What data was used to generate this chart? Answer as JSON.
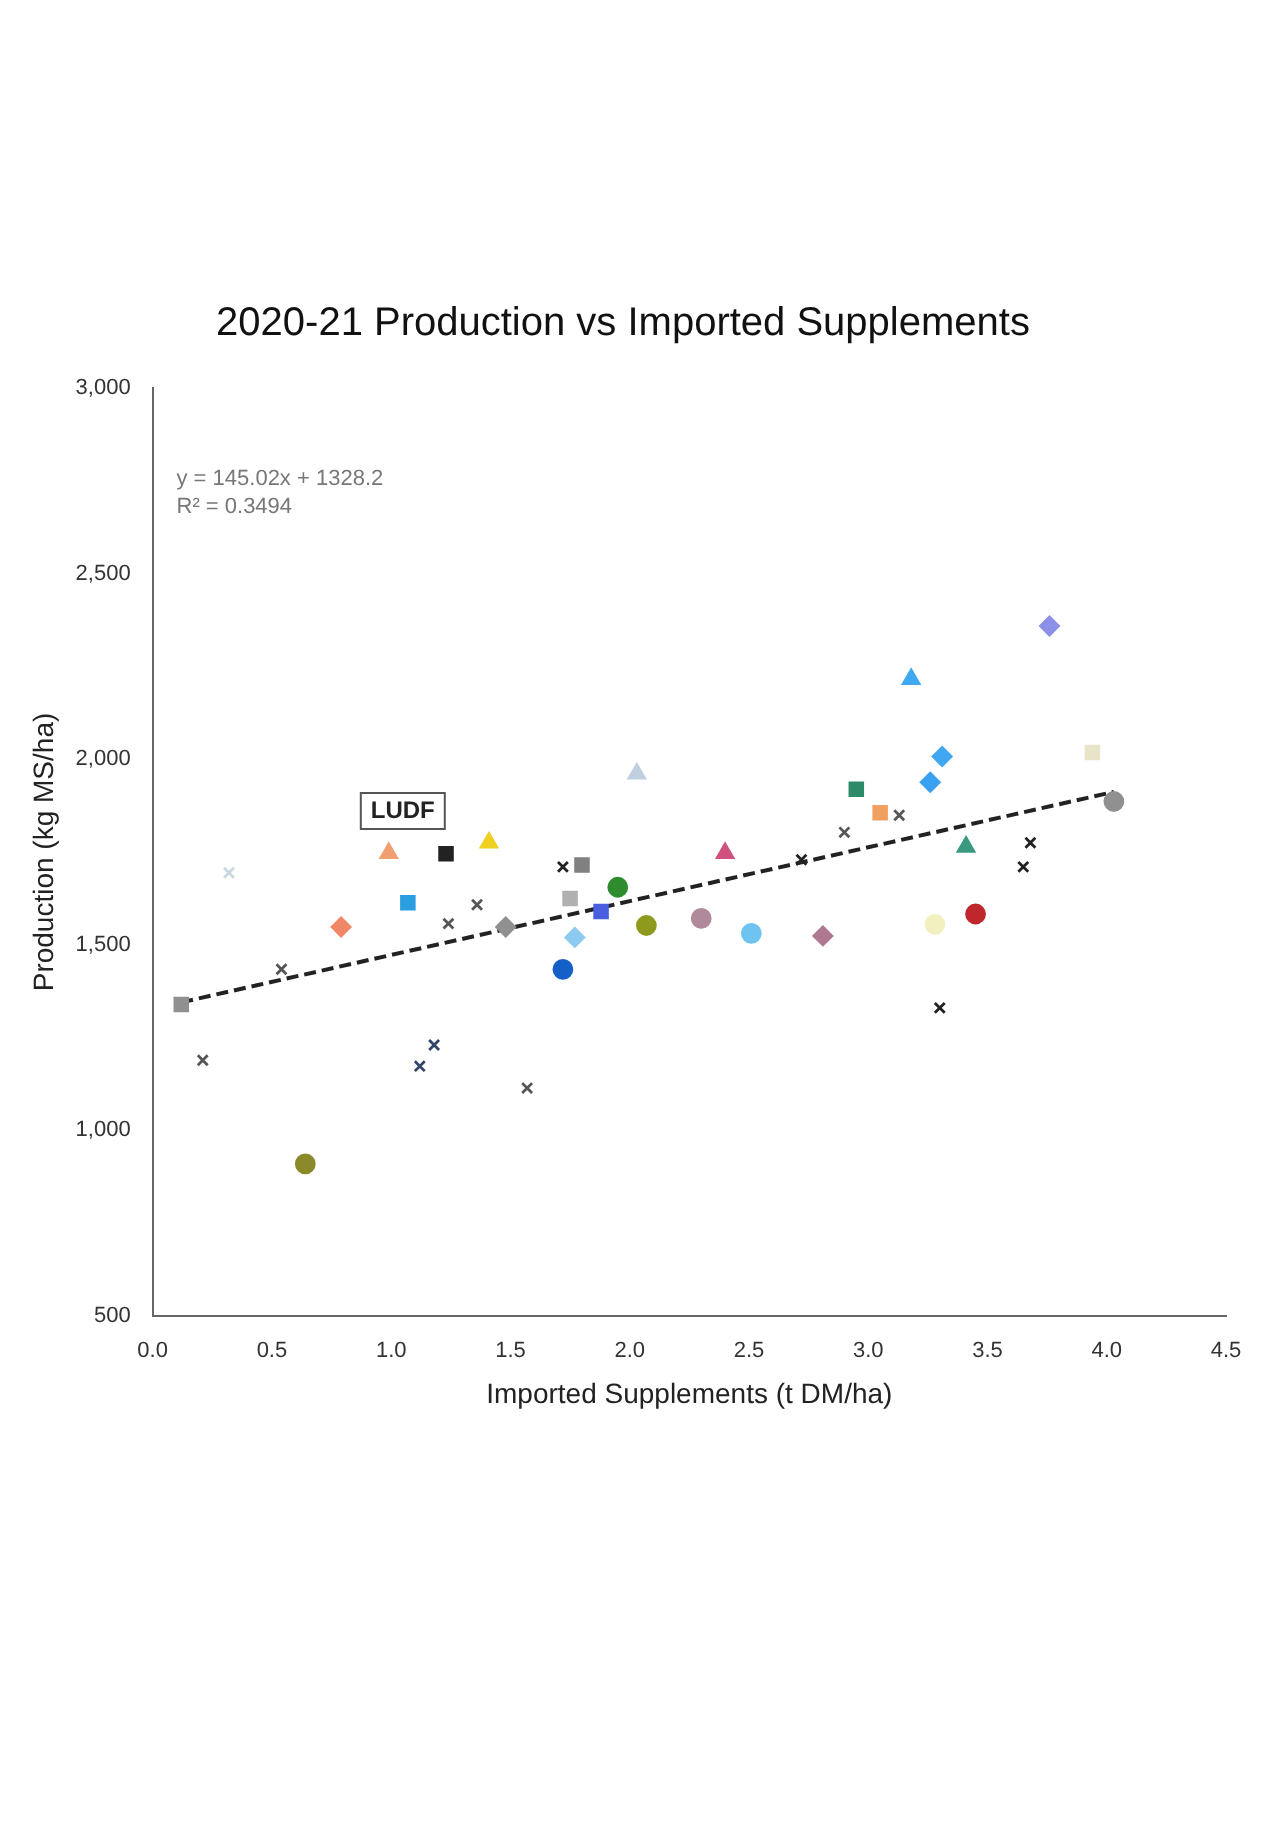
{
  "chart_data": {
    "type": "scatter",
    "title": "2020-21 Production vs Imported Supplements",
    "xlabel": "Imported Supplements (t DM/ha)",
    "ylabel": "Production (kg MS/ha)",
    "xlim": [
      0,
      4.5
    ],
    "xticks": [
      {
        "value": 0,
        "label": "0.0"
      },
      {
        "value": 0.5,
        "label": "0.5"
      },
      {
        "value": 1,
        "label": "1.0"
      },
      {
        "value": 1.5,
        "label": "1.5"
      },
      {
        "value": 2,
        "label": "2.0"
      },
      {
        "value": 2.5,
        "label": "2.5"
      },
      {
        "value": 3,
        "label": "3.0"
      },
      {
        "value": 3.5,
        "label": "3.5"
      },
      {
        "value": 4,
        "label": "4.0"
      },
      {
        "value": 4.5,
        "label": "4.5"
      }
    ],
    "ylim": [
      500,
      3000
    ],
    "yticks": [
      {
        "value": 500,
        "label": "500"
      },
      {
        "value": 1000,
        "label": "1,000"
      },
      {
        "value": 1500,
        "label": "1,500"
      },
      {
        "value": 2000,
        "label": "2,000"
      },
      {
        "value": 2500,
        "label": "2,500"
      },
      {
        "value": 3000,
        "label": "3,000"
      }
    ],
    "grid": false,
    "legend": false,
    "series": [
      {
        "type": "scatter",
        "marker": "circle",
        "x": [
          3.45,
          3.28,
          2.07,
          1.95,
          1.72,
          0.64
        ],
        "values": [
          1583,
          1555,
          1552,
          1655,
          1434,
          910
        ],
        "colors": [
          "#c0272d",
          "#f3f0c0",
          "#8e9a1e",
          "#2e8b2e",
          "#1560c8",
          "#8b8a2a"
        ]
      },
      {
        "type": "scatter",
        "marker": "circle",
        "x": [
          4.03,
          2.51,
          2.3
        ],
        "values": [
          1886,
          1531,
          1571
        ],
        "colors": [
          "#909090",
          "#6fc3f0",
          "#b08a9a"
        ]
      },
      {
        "type": "scatter",
        "marker": "square",
        "x": [
          3.94,
          2.95,
          1.88,
          1.8,
          1.07
        ],
        "values": [
          2018,
          1919,
          1590,
          1715,
          1613
        ],
        "colors": [
          "#e8e4c8",
          "#2e8b6a",
          "#4a5ee0",
          "#808080",
          "#2a9ee0"
        ]
      },
      {
        "type": "scatter",
        "marker": "square",
        "x": [
          3.05,
          1.75,
          1.23,
          0.12
        ],
        "values": [
          1856,
          1625,
          1745,
          1339
        ],
        "colors": [
          "#f0a060",
          "#b0b0b0",
          "#222222",
          "#909090"
        ]
      },
      {
        "type": "scatter",
        "marker": "diamond",
        "x": [
          3.76,
          3.26,
          0.79
        ],
        "values": [
          2359,
          1938,
          1548
        ],
        "colors": [
          "#8c90e8",
          "#3aa0f0",
          "#f08868"
        ]
      },
      {
        "type": "scatter",
        "marker": "diamond",
        "x": [
          3.31,
          2.81,
          1.77,
          1.48
        ],
        "values": [
          2007,
          1524,
          1520,
          1548
        ],
        "colors": [
          "#40a8f0",
          "#b07890",
          "#8ccaf0",
          "#909090"
        ]
      },
      {
        "type": "scatter",
        "marker": "triangle",
        "x": [
          3.41,
          1.41
        ],
        "values": [
          1764,
          1775
        ],
        "colors": [
          "#3a9a80",
          "#f0d020"
        ]
      },
      {
        "type": "scatter",
        "marker": "triangle",
        "x": [
          3.18,
          2.4,
          2.03,
          0.99
        ],
        "values": [
          2216,
          1747,
          1961,
          1747
        ],
        "colors": [
          "#40a8f0",
          "#d05080",
          "#c0d0e0",
          "#f0a070"
        ]
      },
      {
        "type": "scatter",
        "marker": "cross",
        "x": [
          3.68,
          3.65,
          3.3,
          3.13,
          2.9,
          2.72,
          1.57,
          1.36,
          1.24,
          1.18,
          1.12,
          0.54,
          0.21
        ],
        "values": [
          1775,
          1710,
          1330,
          1849,
          1803,
          1729,
          1114,
          1608,
          1557,
          1230,
          1173,
          1434,
          1189
        ],
        "colors": [
          "#222222",
          "#222222",
          "#222222",
          "#555555",
          "#555555",
          "#222222",
          "#555555",
          "#555555",
          "#555555",
          "#334466",
          "#334466",
          "#555555",
          "#555555"
        ]
      },
      {
        "type": "scatter",
        "marker": "cross",
        "x": [
          1.72,
          0.32
        ],
        "values": [
          1710,
          1694
        ],
        "colors": [
          "#222222",
          "#c8d8e0"
        ]
      },
      {
        "type": "line",
        "line_style": "dashed",
        "color": "#222222",
        "x": [
          0.12,
          4.03
        ],
        "values": [
          1345,
          1912
        ]
      }
    ],
    "annotations": [
      "y = 145.02x + 1328.2",
      "R² = 0.3494",
      {
        "text": "LUDF",
        "x": 0.99,
        "y": 1747
      }
    ]
  }
}
